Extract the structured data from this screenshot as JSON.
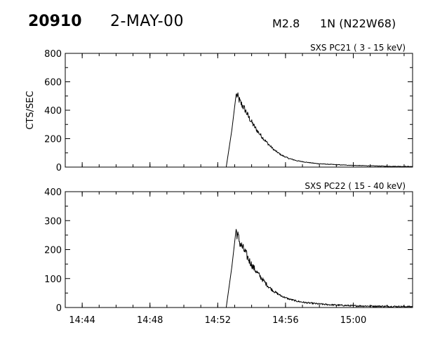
{
  "header": {
    "event_number": "20910",
    "date": "2-MAY-00",
    "flare_class": "M2.8",
    "location": "1N (N22W68)"
  },
  "chart_data": [
    {
      "type": "line",
      "title": "SXS PC21  (  3 - 15 keV)",
      "ylabel": "CTS/SEC",
      "xlabel": "",
      "xlim": [
        "14:43:00",
        "15:03:30"
      ],
      "ylim": [
        0,
        800
      ],
      "yticks": [
        0,
        200,
        400,
        600,
        800
      ],
      "xticks": [
        "14:44",
        "14:48",
        "14:52",
        "14:56",
        "15:00"
      ],
      "show_x_tick_labels": false,
      "grid": false,
      "series": [
        {
          "x": [
            "14:43:00",
            "14:52:30",
            "14:52:50",
            "14:53:05",
            "14:53:10",
            "14:53:20",
            "14:53:35",
            "14:53:50",
            "14:54:05",
            "14:54:20",
            "14:54:40",
            "14:55:00",
            "14:55:20",
            "14:55:45",
            "14:56:10",
            "14:56:40",
            "14:57:10",
            "14:57:50",
            "14:58:30",
            "14:59:10",
            "15:00:00",
            "15:01:00",
            "15:02:00",
            "15:03:30"
          ],
          "y": [
            0,
            0,
            260,
            510,
            500,
            455,
            410,
            350,
            300,
            255,
            205,
            160,
            120,
            85,
            62,
            45,
            35,
            25,
            20,
            16,
            12,
            9,
            6,
            4
          ]
        }
      ]
    },
    {
      "type": "line",
      "title": "SXS PC22  ( 15 - 40 keV)",
      "ylabel": "",
      "xlabel": "",
      "xlim": [
        "14:43:00",
        "15:03:30"
      ],
      "ylim": [
        0,
        400
      ],
      "yticks": [
        0,
        100,
        200,
        300,
        400
      ],
      "xticks": [
        "14:44",
        "14:48",
        "14:52",
        "14:56",
        "15:00"
      ],
      "show_x_tick_labels": true,
      "grid": false,
      "series": [
        {
          "x": [
            "14:43:00",
            "14:52:30",
            "14:52:50",
            "14:53:05",
            "14:53:10",
            "14:53:20",
            "14:53:35",
            "14:53:50",
            "14:54:05",
            "14:54:20",
            "14:54:40",
            "14:55:00",
            "14:55:20",
            "14:55:45",
            "14:56:10",
            "14:56:40",
            "14:57:10",
            "14:57:50",
            "14:58:30",
            "14:59:10",
            "15:00:00",
            "15:01:00",
            "15:02:00",
            "15:03:30"
          ],
          "y": [
            0,
            0,
            140,
            270,
            250,
            220,
            195,
            165,
            140,
            120,
            95,
            72,
            55,
            40,
            30,
            22,
            17,
            13,
            10,
            8,
            6,
            5,
            4,
            3
          ]
        }
      ]
    }
  ]
}
